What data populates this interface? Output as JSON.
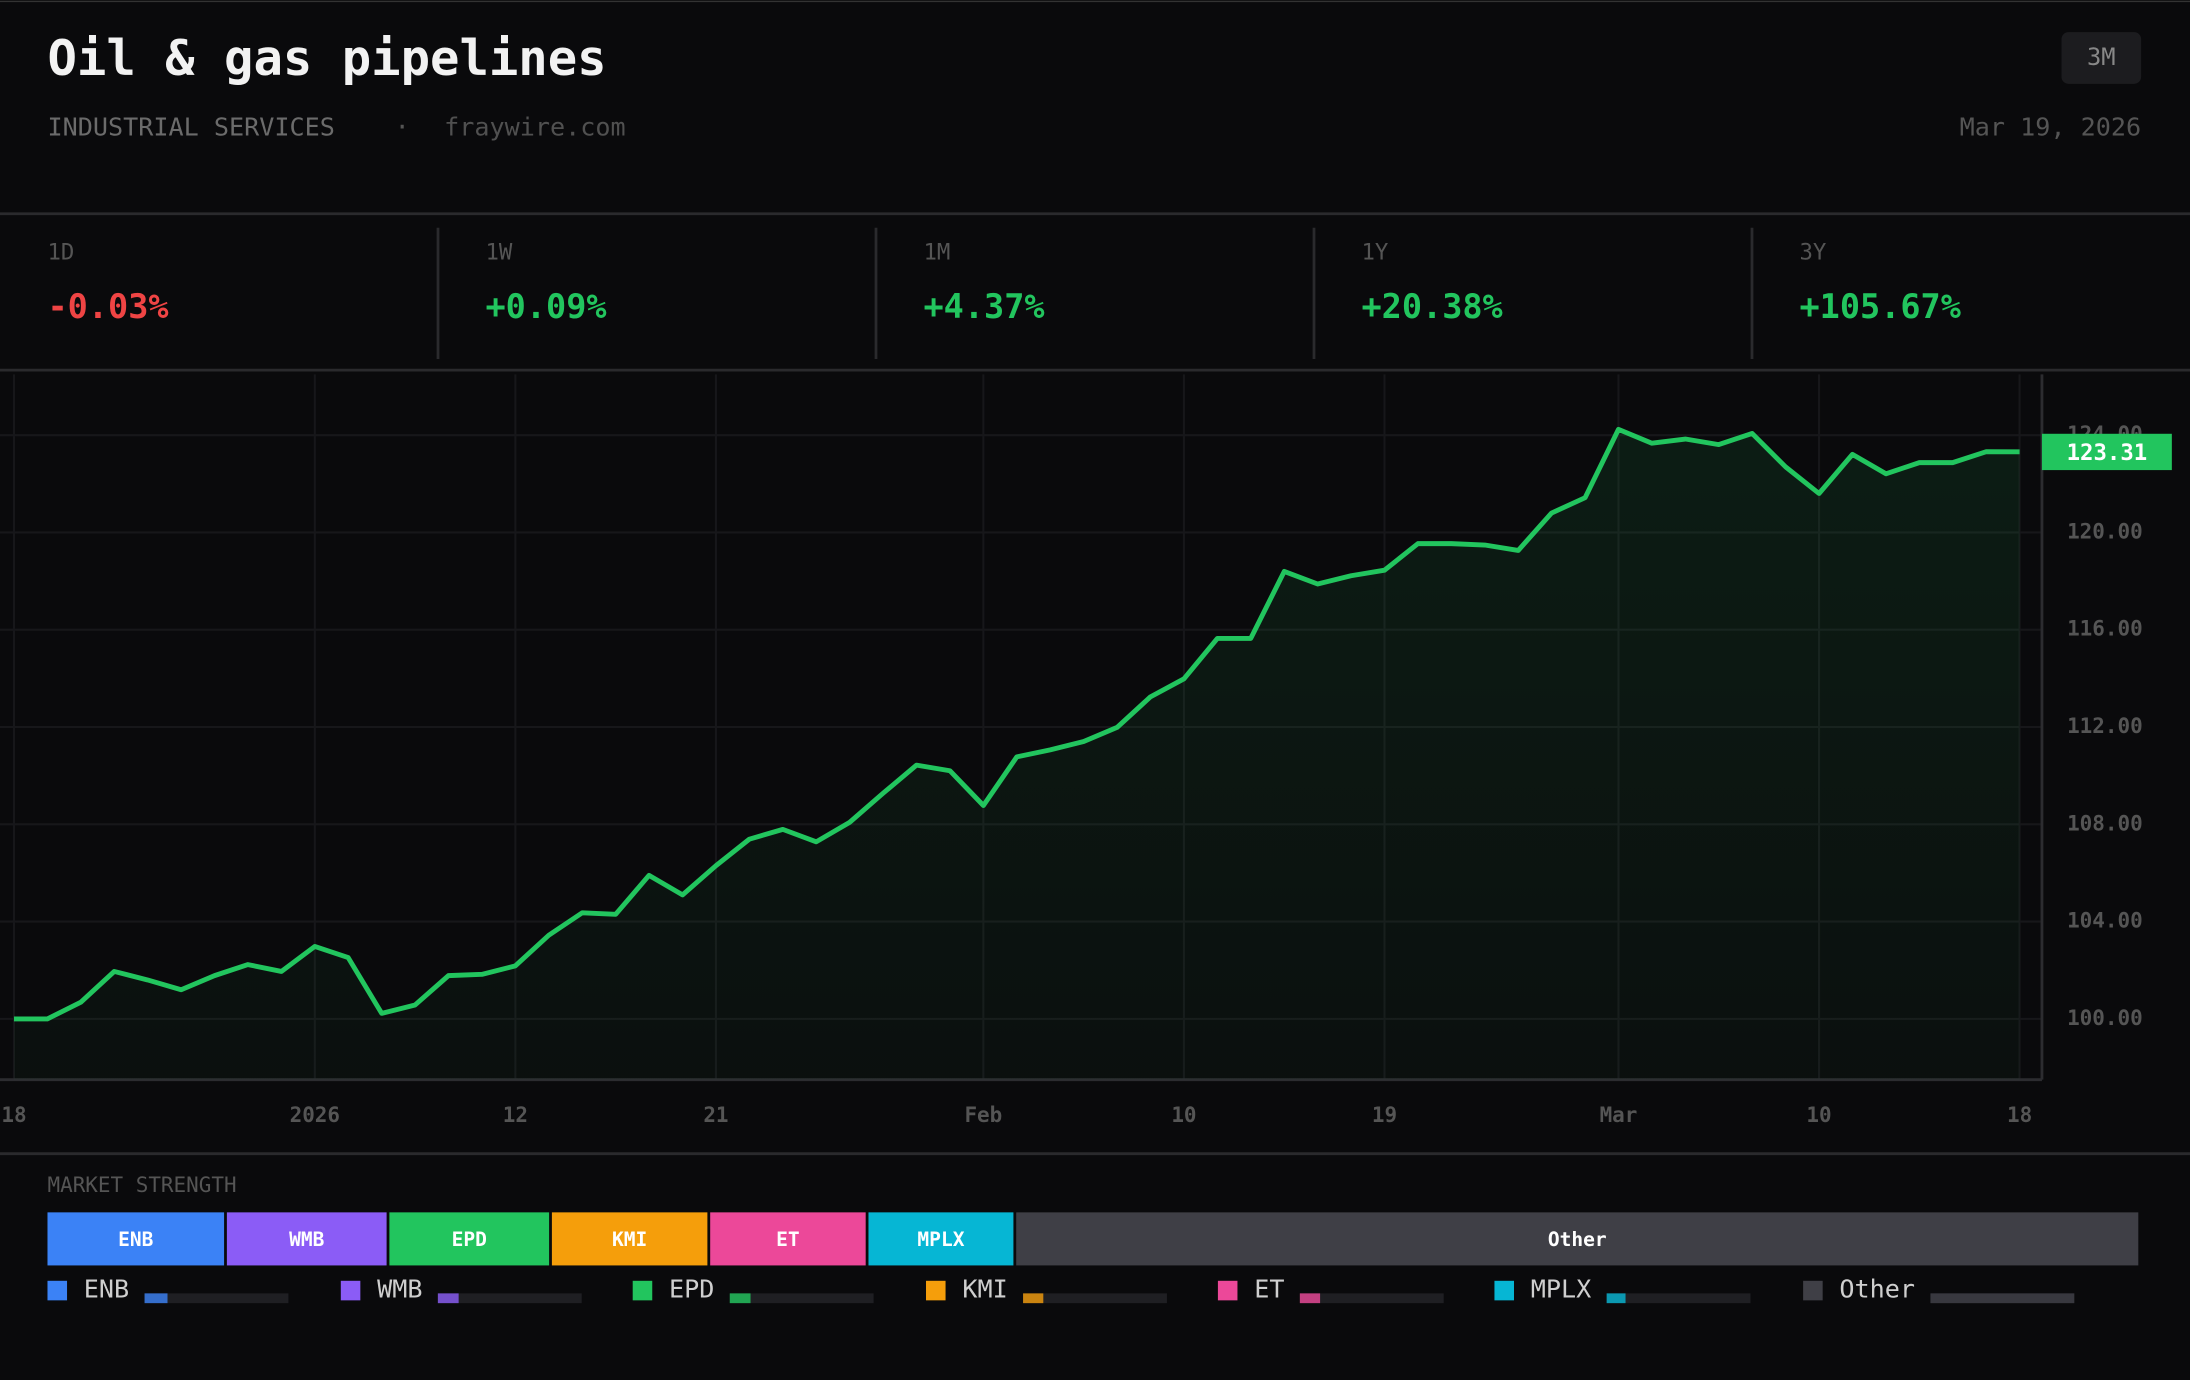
{
  "header": {
    "title": "Oil & gas pipelines",
    "category": "INDUSTRIAL SERVICES",
    "separator": "·",
    "source": "fraywire.com",
    "date": "Mar 19, 2026",
    "range_button": "3M"
  },
  "stats": [
    {
      "label": "1D",
      "value": "-0.03%"
    },
    {
      "label": "1W",
      "value": "+0.09%"
    },
    {
      "label": "1M",
      "value": "+4.37%"
    },
    {
      "label": "1Y",
      "value": "+20.38%"
    },
    {
      "label": "3Y",
      "value": "+105.67%"
    }
  ],
  "chart_data": [
    {
      "type": "line",
      "color": "#22c55e",
      "grid": true,
      "categories": [
        "18",
        null,
        null,
        null,
        null,
        null,
        null,
        null,
        null,
        "2026",
        null,
        null,
        null,
        null,
        null,
        "12",
        null,
        null,
        null,
        null,
        null,
        "21",
        null,
        null,
        null,
        null,
        null,
        null,
        null,
        "Feb",
        null,
        null,
        null,
        null,
        null,
        "10",
        null,
        null,
        null,
        null,
        null,
        "19",
        null,
        null,
        null,
        null,
        null,
        null,
        "Mar",
        null,
        null,
        null,
        null,
        null,
        "10",
        null,
        null,
        null,
        null,
        null,
        "18"
      ],
      "values": [
        100.0,
        100.0,
        100.69,
        101.95,
        101.6,
        101.2,
        101.78,
        102.23,
        101.95,
        102.98,
        102.52,
        100.23,
        100.57,
        101.78,
        101.83,
        102.18,
        103.44,
        104.36,
        104.3,
        105.9,
        105.1,
        106.3,
        107.39,
        107.79,
        107.28,
        108.08,
        109.28,
        110.43,
        110.2,
        108.77,
        110.77,
        111.06,
        111.4,
        111.98,
        113.24,
        113.98,
        115.64,
        115.64,
        118.4,
        117.88,
        118.22,
        118.45,
        119.54,
        119.54,
        119.48,
        119.26,
        120.8,
        121.43,
        124.24,
        123.67,
        123.84,
        123.61,
        124.07,
        122.69,
        121.6,
        123.21,
        122.41,
        122.87,
        122.87,
        123.32,
        123.31
      ],
      "ylim": [
        97.5,
        126.5
      ],
      "yticks": [
        {
          "value": 100,
          "label": "100.00"
        },
        {
          "value": 104,
          "label": "104.00"
        },
        {
          "value": 108,
          "label": "108.00"
        },
        {
          "value": 112,
          "label": "112.00"
        },
        {
          "value": 116,
          "label": "116.00"
        },
        {
          "value": 120,
          "label": "120.00"
        },
        {
          "value": 124,
          "label": "124.00"
        }
      ]
    },
    {
      "type": "share-bar",
      "title": "MARKET STRENGTH",
      "categories": [
        "ENB",
        "WMB",
        "EPD",
        "KMI",
        "ET",
        "MPLX",
        "Other"
      ],
      "values": [
        8.5,
        7.7,
        7.7,
        7.5,
        7.5,
        7.0,
        53.3
      ],
      "colors": [
        "#3b82f6",
        "#8b5cf6",
        "#22c55e",
        "#f59e0b",
        "#ec4899",
        "#06b6d4",
        "#3f3f46"
      ]
    }
  ]
}
